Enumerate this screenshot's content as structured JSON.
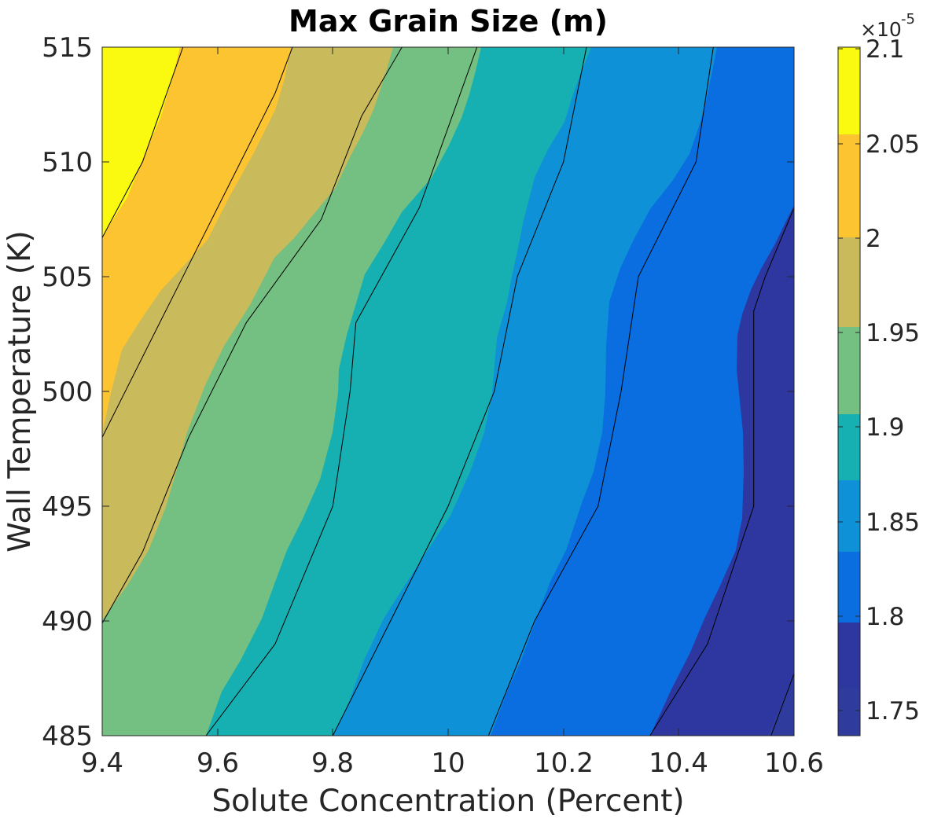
{
  "chart_data": {
    "type": "contour",
    "title": "Max Grain Size (m)",
    "xlabel": "Solute Concentration (Percent)",
    "ylabel": "Wall Temperature (K)",
    "xlim": [
      9.4,
      10.6
    ],
    "ylim": [
      485,
      515
    ],
    "xticks": [
      "9.4",
      "9.6",
      "9.8",
      "10",
      "10.2",
      "10.4",
      "10.6"
    ],
    "yticks": [
      "485",
      "490",
      "495",
      "500",
      "505",
      "510",
      "515"
    ],
    "grid": false,
    "colorbar": {
      "position": "right",
      "scale_multiplier": "×10",
      "scale_exponent": "-5",
      "range": [
        1.735,
        2.095
      ],
      "ticks": [
        "1.75",
        "1.8",
        "1.85",
        "1.9",
        "1.95",
        "2",
        "2.05",
        "2.1"
      ]
    },
    "levels": [
      {
        "range": [
          1.735,
          1.75
        ],
        "color": "#2f3c9e"
      },
      {
        "range": [
          1.75,
          1.8
        ],
        "color": "#2e379f"
      },
      {
        "range": [
          1.8,
          1.85
        ],
        "color": "#0a6ee0"
      },
      {
        "range": [
          1.85,
          1.9
        ],
        "color": "#0e91d6"
      },
      {
        "range": [
          1.9,
          1.95
        ],
        "color": "#16b0b3"
      },
      {
        "range": [
          1.95,
          2.0
        ],
        "color": "#74bf82"
      },
      {
        "range": [
          2.0,
          2.05
        ],
        "color": "#c9ba5c"
      },
      {
        "range": [
          2.05,
          2.1
        ],
        "color": "#fdc432"
      },
      {
        "range": [
          2.1,
          2.095
        ],
        "color": "#f9fa0f"
      }
    ],
    "contour_lines": [
      {
        "level": 2.075,
        "points": [
          [
            9.4,
            506.7
          ],
          [
            9.47,
            510.0
          ],
          [
            9.54,
            515.0
          ]
        ]
      },
      {
        "level": 2.05,
        "points": [
          [
            9.4,
            498.0
          ],
          [
            9.5,
            503.0
          ],
          [
            9.6,
            508.0
          ],
          [
            9.7,
            513.0
          ],
          [
            9.73,
            515.0
          ]
        ]
      },
      {
        "level": 2.0,
        "points": [
          [
            9.4,
            489.9
          ],
          [
            9.47,
            493.0
          ],
          [
            9.55,
            498.0
          ],
          [
            9.65,
            503.0
          ],
          [
            9.78,
            507.5
          ],
          [
            9.85,
            512.0
          ],
          [
            9.92,
            515.0
          ]
        ]
      },
      {
        "level": 1.95,
        "points": [
          [
            9.58,
            485.0
          ],
          [
            9.7,
            489.0
          ],
          [
            9.8,
            495.0
          ],
          [
            9.83,
            500.0
          ],
          [
            9.84,
            503.0
          ],
          [
            9.95,
            508.0
          ],
          [
            10.05,
            515.0
          ]
        ]
      },
      {
        "level": 1.9,
        "points": [
          [
            9.8,
            485.0
          ],
          [
            9.9,
            490.0
          ],
          [
            10.0,
            495.0
          ],
          [
            10.08,
            500.0
          ],
          [
            10.12,
            505.0
          ],
          [
            10.2,
            510.0
          ],
          [
            10.24,
            515.0
          ]
        ]
      },
      {
        "level": 1.85,
        "points": [
          [
            10.07,
            485.0
          ],
          [
            10.15,
            490.0
          ],
          [
            10.26,
            495.0
          ],
          [
            10.3,
            500.0
          ],
          [
            10.33,
            505.0
          ],
          [
            10.43,
            510.0
          ],
          [
            10.46,
            515.0
          ]
        ]
      },
      {
        "level": 1.8,
        "points": [
          [
            10.35,
            485.0
          ],
          [
            10.45,
            489.0
          ],
          [
            10.53,
            495.0
          ],
          [
            10.53,
            500.0
          ],
          [
            10.53,
            503.5
          ],
          [
            10.55,
            505.0
          ],
          [
            10.6,
            508.0
          ]
        ]
      },
      {
        "level": 1.75,
        "points": [
          [
            10.56,
            485.0
          ],
          [
            10.6,
            487.7
          ]
        ]
      }
    ]
  }
}
